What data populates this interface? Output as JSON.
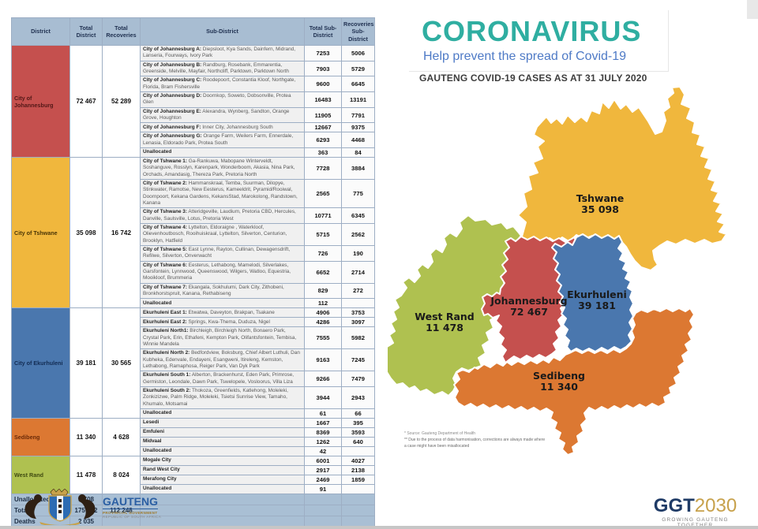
{
  "banner": {
    "title": "CORONAVIRUS",
    "subtitle": "Help prevent the spread of Covid-19",
    "caption": "GAUTENG COVID-19 CASES AS AT 31 JULY 2020",
    "title_color": "#2FAEA1",
    "subtitle_color": "#4E7AC6"
  },
  "table": {
    "headers": [
      "District",
      "Total District",
      "Total Recoveries",
      "Sub-District",
      "Total Sub-District",
      "Recoveries Sub-District"
    ],
    "districts": [
      {
        "name": "City of Johannesburg",
        "color": "#C5504E",
        "text_color": "#521717",
        "total": "72 467",
        "recoveries": "52 289",
        "rows": [
          {
            "bold": "City of Johannesburg A:",
            "rest": " Diepsloot, Kya Sands, Dainfern, Midrand,  Lanseria, Fourways, Ivory Park",
            "total": "7253",
            "recovered": "5006"
          },
          {
            "bold": "City of Johannesburg B:",
            "rest": " Randburg, Rosebank, Emmarentia,  Greenside, Melville, Mayfair, Northcliff, Parktown, Parktown North",
            "total": "7903",
            "recovered": "5729"
          },
          {
            "bold": "City of Johannesburg C:",
            "rest": " Roodepoort, Constantia Kloof, Northgate,  Florida, Bram Fishersville",
            "total": "9600",
            "recovered": "6645"
          },
          {
            "bold": "City of Johannesburg D:",
            "rest": " Doornkop, Soweto, Dobsonville, Protea  Glen",
            "total": "16483",
            "recovered": "13191"
          },
          {
            "bold": "City of Johannesburg E:",
            "rest": " Alexandra, Wynberg, Sandton, Orange  Grove, Houghton",
            "total": "11905",
            "recovered": "7791"
          },
          {
            "bold": "City of Johannesburg F:",
            "rest": " Inner City, Johannesburg South",
            "total": "12667",
            "recovered": "9375"
          },
          {
            "bold": "City of Johannesburg G:",
            "rest": " Orange Farm, Weilers Farm, Ennerdale,  Lenasia, Eldorado Park, Protea South",
            "total": "6293",
            "recovered": "4468"
          },
          {
            "bold": "Unallocated",
            "rest": "",
            "total": "363",
            "recovered": "84"
          }
        ]
      },
      {
        "name": "City of Tshwane",
        "color": "#F0B73D",
        "text_color": "#4A3505",
        "total": "35 098",
        "recoveries": "16 742",
        "rows": [
          {
            "bold": "City of Tshwane 1:",
            "rest": " Ga-Rankuwa, Mabopane Winterveldt, Soshanguve, Rosslyn, Karenpark, Wonderboom, Akasia, Nina Park,  Orchads, Amandasig, Thereza Park, Pretoria North",
            "total": "7728",
            "recovered": "3884"
          },
          {
            "bold": "City of Tshwane 2:",
            "rest": "  Hammanskraal, Temba, Suurman, Dilopye, Stinkwater, Ramotse, New  Eesterus, Kameeldrit, Pyramid/Rooiwal, Doornpoort, Kekana Gardens, KekansStad, Marokolong, Randstown, Kanana",
            "total": "2565",
            "recovered": "775"
          },
          {
            "bold": "City of Tshwane 3:",
            "rest": " Atteridgeville, Laudium, Pretoria CBD, Hercules,  Danville, Saulsville, Lotus, Pretoria West",
            "total": "10771",
            "recovered": "6345"
          },
          {
            "bold": "City of Tshwane 4:",
            "rest": " Lyttelton, Eldoraigne , Waterkloof, Olievenhoutbosch, Rooihuiskraal, Lyttelton, Silverton, Centurion,  Brooklyn, Hatfield",
            "total": "5715",
            "recovered": "2562"
          },
          {
            "bold": "City of Tshwane 5:",
            "rest": " East Lynne, Rayton, Cullinan, Dewagensdrift,  Refilwe, Silverton, Onverwacht",
            "total": "726",
            "recovered": "190"
          },
          {
            "bold": "City of Tshwane 6:",
            "rest": " Eesterus, Lethabong, Mamelodi, Silverlakes,  Garsfontein, Lynnwood, Queenswood, Wilgers, Watloo, Equestria,  Mooikloof, Brummeria",
            "total": "6652",
            "recovered": "2714"
          },
          {
            "bold": "City of Tshwane 7:",
            "rest": " Ekangala, Sokhulumi, Dark City, Zithobeni,  Bronkhorstspruit, Kanana, Rethabiseng",
            "total": "829",
            "recovered": "272"
          },
          {
            "bold": "Unallocated",
            "rest": "",
            "total": "112",
            "recovered": ""
          }
        ]
      },
      {
        "name": "City of Ekurhuleni",
        "color": "#4A77AE",
        "text_color": "#122B52",
        "total": "39 181",
        "recoveries": "30 565",
        "rows": [
          {
            "bold": "Ekurhuleni East 1:",
            "rest": " Etwatwa, Daveyton, Brakpan, Tsakane",
            "total": "4906",
            "recovered": "3753"
          },
          {
            "bold": "Ekurhuleni East 2:",
            "rest": " Springs, Kwa-Thema, Duduza, Nigel",
            "total": "4286",
            "recovered": "3097"
          },
          {
            "bold": "Ekurhuleni North1:",
            "rest": " Birchleigh, Birchleigh North, Bonaero Park, Crystal Park, Erin, Ethafeni, Kempton Park, Olifantsfontein, Tembisa, Winnie Mandela",
            "total": "7555",
            "recovered": "5982"
          },
          {
            "bold": "Ekurhuleni North 2:",
            "rest": " Bedfordview, Boksburg, Chief Albert Luthuli, Dan Kubheka, Edenvale, Endayeni, Esangweni, Itireleng, Kemston, Lethabong, Ramaphosa, Reiger Park, Van Dyk Park",
            "total": "9163",
            "recovered": "7245"
          },
          {
            "bold": "Ekurhuleni South 1:",
            "rest": "  Alberton, Brackenhurst, Eden Park, Primrose, Germiston, Leondale, Dawn Park, Tswelopele, Vosloorus, Villa Liza",
            "total": "9266",
            "recovered": "7479"
          },
          {
            "bold": "Ekurhuleni South 2:",
            "rest": " Thokoza, Greenfields, Katlehong, Moleleki, Zonkizizwe, Palm Ridge, Moleleki, Tsietsi Sunrise View, Tamaho, Khumalo, Motsamai",
            "total": "3944",
            "recovered": "2943"
          },
          {
            "bold": "Unallocated",
            "rest": "",
            "total": "61",
            "recovered": "66"
          }
        ]
      },
      {
        "name": "Sedibeng",
        "color": "#DC7832",
        "text_color": "#6B2A08",
        "total": "11 340",
        "recoveries": "4 628",
        "rows": [
          {
            "bold": "Lesedi",
            "rest": "",
            "total": "1667",
            "recovered": "395"
          },
          {
            "bold": "Emfuleni",
            "rest": "",
            "total": "8369",
            "recovered": "3593"
          },
          {
            "bold": "Midvaal",
            "rest": "",
            "total": "1262",
            "recovered": "640"
          },
          {
            "bold": "Unallocated",
            "rest": "",
            "total": "42",
            "recovered": ""
          }
        ]
      },
      {
        "name": "West Rand",
        "color": "#AFC150",
        "text_color": "#3F4A10",
        "total": "11 478",
        "recoveries": "8 024",
        "rows": [
          {
            "bold": "Mogale City",
            "rest": "",
            "total": "6001",
            "recovered": "4027"
          },
          {
            "bold": "Rand West City",
            "rest": "",
            "total": "2917",
            "recovered": "2138"
          },
          {
            "bold": "Merafong City",
            "rest": "",
            "total": "2469",
            "recovered": "1859"
          },
          {
            "bold": "Unallocated",
            "rest": "",
            "total": "91",
            "recovered": ""
          }
        ]
      }
    ],
    "summary": [
      {
        "label": "Unallocated",
        "total": "5 708",
        "recoveries": ""
      },
      {
        "label": "Total",
        "total": "175 272",
        "recoveries": "112 248"
      },
      {
        "label": "Deaths",
        "total": "2 035",
        "recoveries": ""
      }
    ]
  },
  "map": {
    "regions": [
      {
        "name": "Tshwane",
        "value": "35 098",
        "color": "#F0B73D"
      },
      {
        "name": "Johannesburg",
        "value": "72 467",
        "color": "#C5504E"
      },
      {
        "name": "Ekurhuleni",
        "value": "39 181",
        "color": "#4A77AE"
      },
      {
        "name": "West Rand",
        "value": "11 478",
        "color": "#AFC150"
      },
      {
        "name": "Sedibeng",
        "value": "11 340",
        "color": "#DC7832"
      }
    ],
    "footnote1": "* Source: Gauteng Department of Health",
    "footnote2": "** Due to the process of data harmonisation, corrections are always made where",
    "footnote3": "a case might have been misallocated"
  },
  "footer": {
    "gauteng": {
      "title": "GAUTENG",
      "line1": "PROVINCIAL GOVERNMENT",
      "line2": "REPUBLIC OF SOUTH AFRICA"
    },
    "ggt": {
      "prefix": "GGT",
      "year": "2030",
      "tagline": "GROWING GAUTENG TOGETHER"
    }
  }
}
